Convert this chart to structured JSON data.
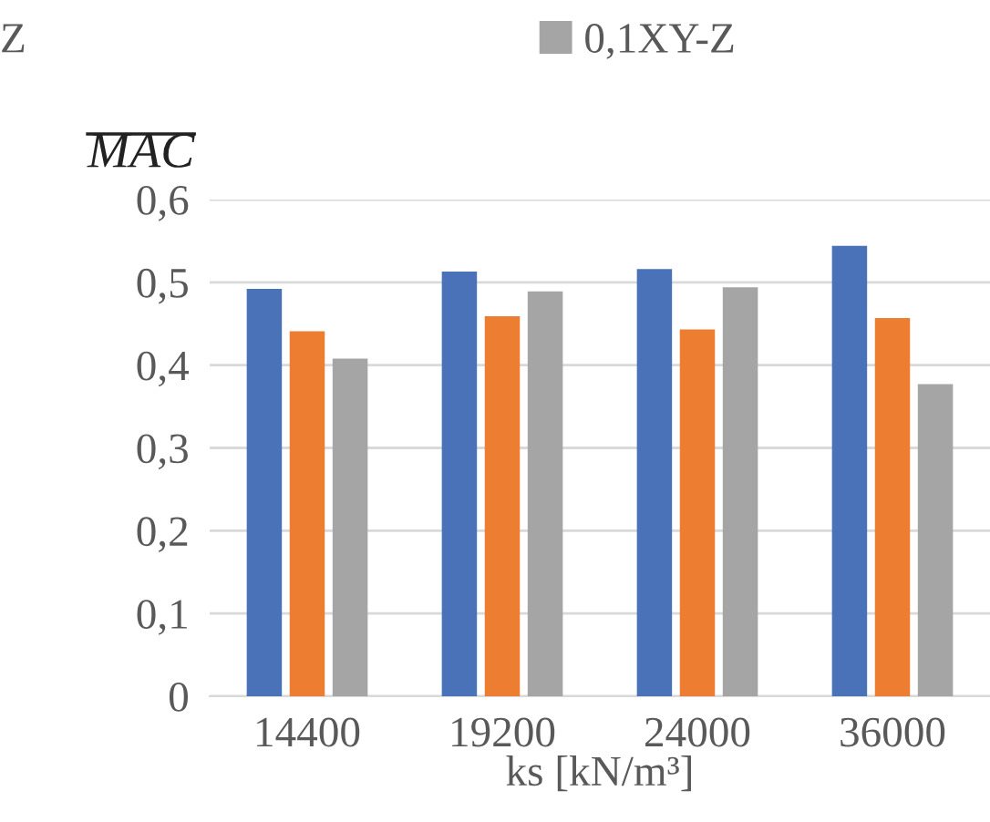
{
  "chart_data": {
    "type": "bar",
    "categories": [
      "14400",
      "19200",
      "24000",
      "36000"
    ],
    "series": [
      {
        "color": "#4a72b8",
        "values": [
          0.492,
          0.513,
          0.516,
          0.544
        ]
      },
      {
        "color": "#ed7d31",
        "values": [
          0.441,
          0.459,
          0.443,
          0.457
        ]
      },
      {
        "name": "0,1XY-Z",
        "color": "#a5a5a5",
        "values": [
          0.408,
          0.489,
          0.494,
          0.377
        ]
      }
    ],
    "xlabel": "ks [kN/m³]",
    "ylabel": "MAC",
    "annotations": [
      "Z"
    ],
    "ylim": [
      0,
      0.6
    ],
    "yticks": [
      {
        "value": 0,
        "label": "0"
      },
      {
        "value": 0.1,
        "label": "0,1"
      },
      {
        "value": 0.2,
        "label": "0,2"
      },
      {
        "value": 0.3,
        "label": "0,3"
      },
      {
        "value": 0.4,
        "label": "0,4"
      },
      {
        "value": 0.5,
        "label": "0,5"
      },
      {
        "value": 0.6,
        "label": "0,6"
      }
    ],
    "grid": "y",
    "legend": "top"
  }
}
